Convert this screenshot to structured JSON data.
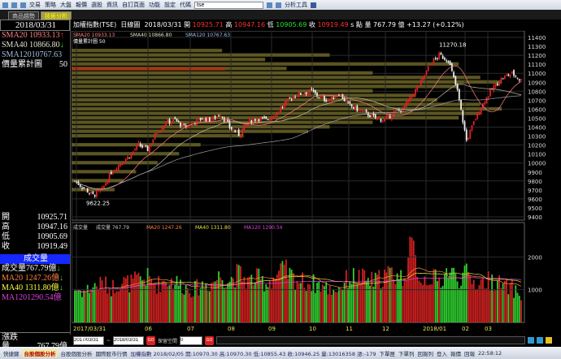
{
  "toolbar": {
    "menus": [
      "交易",
      "策略",
      "大盤",
      "報價",
      "選股",
      "資訊",
      "自訂頁面",
      "功能",
      "設定",
      "代碼"
    ],
    "symbol": "tse",
    "analysis": "分析工具"
  },
  "tabs": [
    {
      "label": "商品趨勢",
      "active": false
    },
    {
      "label": "技術分析",
      "active": true
    }
  ],
  "left": {
    "date": "2018/03/31",
    "sma20": "SMA20 10933.13",
    "sma40": "SMA40 10866.80",
    "sma120": "SMA12010767.63",
    "vp_label": "價量累計圖",
    "vp_value": "50",
    "ohlc": [
      {
        "k": "開",
        "v": "10925.71"
      },
      {
        "k": "高",
        "v": "10947.16"
      },
      {
        "k": "低",
        "v": "10905.69"
      },
      {
        "k": "收",
        "v": "10919.49"
      }
    ],
    "vol_title": "成交量",
    "vol": "成交量767.79億",
    "ma20": "MA20 1247.26億",
    "ma40": "MA40 1311.80億",
    "ma120": "MA1201290.54億",
    "chg_label": "漲跌",
    "qty_label": "量",
    "qty": "767.79億"
  },
  "header": {
    "name": "加權指數(TSE)",
    "period": "日線圖",
    "date": "2018/03/31",
    "o_l": "開",
    "o": "10925.71",
    "h_l": "高",
    "h": "10947.16",
    "l_l": "低",
    "l": "10905.69",
    "c_l": "收",
    "c": "10919.49",
    "unit": "s 點",
    "vol": "量 767.79 億",
    "chg": "+13.27 (+0.12%)"
  },
  "price_legend": {
    "sma20": "SMA20 10933.13",
    "sma40": "SMA40 10866.80",
    "sma120": "SMA120 10767.63",
    "vp": "價量累計圖 50"
  },
  "vol_legend": {
    "vol": "成交量",
    "vol_v": "成交量 767.79",
    "ma20": "MA20 1247.26",
    "ma40": "MA40 1311.80",
    "ma120": "MA120 1290.54",
    "unit": "億"
  },
  "chart_data": {
    "type": "candlestick",
    "y_ticks": [
      11400,
      11300,
      11200,
      11100,
      11000,
      10900,
      10800,
      10700,
      10600,
      10500,
      10400,
      10300,
      10200,
      10100,
      10000,
      9900,
      9800,
      9700,
      9600,
      9500,
      9400
    ],
    "x_labels": [
      "2017/03/31",
      "06",
      "07",
      "08",
      "09",
      "10",
      "11",
      "12",
      "2018/01",
      "02",
      "03"
    ],
    "annotations": [
      {
        "text": "11270.18",
        "value": 11270.18
      },
      {
        "text": "9622.25",
        "value": 9622.25
      }
    ],
    "weekly_close": [
      9800,
      9720,
      9640,
      9700,
      9900,
      10000,
      10080,
      10200,
      10150,
      10350,
      10450,
      10480,
      10400,
      10450,
      10500,
      10480,
      10550,
      10400,
      10320,
      10450,
      10500,
      10480,
      10550,
      10650,
      10750,
      10780,
      10800,
      10720,
      10700,
      10780,
      10650,
      10600,
      10550,
      10500,
      10480,
      10560,
      10600,
      10750,
      10900,
      11100,
      11200,
      11150,
      10800,
      10250,
      10500,
      10700,
      10850,
      10950,
      11000,
      10920
    ],
    "vol_ticks": [
      2000,
      1000
    ],
    "weekly_volume": [
      1000,
      950,
      1100,
      1200,
      1050,
      1250,
      1200,
      1300,
      1350,
      1150,
      1300,
      1250,
      1100,
      1000,
      1150,
      1200,
      1450,
      1300,
      1500,
      1250,
      1350,
      1200,
      1400,
      1600,
      1350,
      1250,
      1200,
      1150,
      1000,
      1050,
      1350,
      1400,
      1300,
      1250,
      1450,
      1500,
      1350,
      2300,
      1300,
      1400,
      1250,
      1600,
      1350,
      1450,
      1200,
      1250,
      1300,
      1100,
      1050,
      800
    ],
    "volume_profile": [
      {
        "price": 11250,
        "vol": 0.35
      },
      {
        "price": 11200,
        "vol": 0.6
      },
      {
        "price": 11150,
        "vol": 0.45
      },
      {
        "price": 11100,
        "vol": 0.9
      },
      {
        "price": 11050,
        "vol": 0.5
      },
      {
        "price": 11000,
        "vol": 0.7
      },
      {
        "price": 10950,
        "vol": 0.95
      },
      {
        "price": 10900,
        "vol": 1.0
      },
      {
        "price": 10850,
        "vol": 0.9
      },
      {
        "price": 10800,
        "vol": 0.7
      },
      {
        "price": 10750,
        "vol": 0.8
      },
      {
        "price": 10700,
        "vol": 0.85
      },
      {
        "price": 10650,
        "vol": 0.95
      },
      {
        "price": 10600,
        "vol": 1.0
      },
      {
        "price": 10550,
        "vol": 0.95
      },
      {
        "price": 10500,
        "vol": 0.9
      },
      {
        "price": 10450,
        "vol": 0.7
      },
      {
        "price": 10400,
        "vol": 0.6
      },
      {
        "price": 10350,
        "vol": 0.55
      },
      {
        "price": 10300,
        "vol": 0.4
      },
      {
        "price": 10200,
        "vol": 0.3
      },
      {
        "price": 10100,
        "vol": 0.25
      },
      {
        "price": 10000,
        "vol": 0.2
      },
      {
        "price": 9900,
        "vol": 0.15
      },
      {
        "price": 9800,
        "vol": 0.12
      },
      {
        "price": 9700,
        "vol": 0.1
      }
    ],
    "ylim": [
      9400,
      11400
    ]
  },
  "controls": {
    "from": "2017/03/31",
    "to": "2018/03/31",
    "go": "GO",
    "reserve_label": "保留空間",
    "reserve": "0"
  },
  "status": {
    "items": [
      "快捷鍵",
      "台股個股分析",
      "台股個股分析",
      "國際股市行情"
    ],
    "quote": "加權指數 2018/02/05 開:10970.30 高:10970.30 低:10855.43 收:10946.25 量:13016358 漲:-179",
    "buttons": [
      "下單匣",
      "下單列",
      "回報列",
      "登入",
      "報價",
      "回報"
    ],
    "time": "22:58:12"
  },
  "colors": {
    "up": "#e02020",
    "down": "#30d030",
    "profile": "#6b6428",
    "sma20": "#ff8080",
    "sma40": "#c0c0a0",
    "sma120": "#a0a0a0"
  }
}
